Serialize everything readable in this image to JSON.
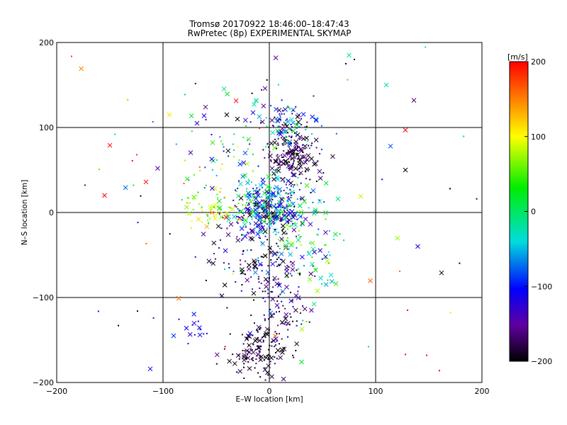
{
  "chart_data": {
    "type": "scatter",
    "title": "Tromsø 20170922 18:46:00–18:47:43",
    "subtitle": "RwPretec (8p) EXPERIMENTAL SKYMAP",
    "xlabel": "E–W location [km]",
    "ylabel": "N–S location [km]",
    "xlim": [
      -200,
      200
    ],
    "ylim": [
      -200,
      200
    ],
    "x_ticks": [
      "−200",
      "−100",
      "0",
      "100",
      "200"
    ],
    "y_ticks": [
      "−200",
      "−100",
      "0",
      "100",
      "200"
    ],
    "grid": true,
    "colorbar": {
      "label": "[m/s]",
      "range": [
        -200,
        200
      ],
      "ticks": [
        "200",
        "100",
        "0",
        "−100",
        "−200"
      ],
      "colormap": "black-purple-blue-cyan-green-yellow-red"
    },
    "marker_legend": "dots and crosses",
    "clusters": [
      {
        "x": 0,
        "y": 5,
        "sx": 18,
        "sy": 18,
        "n": 420,
        "vmean": -90,
        "vsd": 60
      },
      {
        "x": 22,
        "y": 65,
        "sx": 12,
        "sy": 14,
        "n": 160,
        "vmean": -180,
        "vsd": 20
      },
      {
        "x": 18,
        "y": 105,
        "sx": 18,
        "sy": 18,
        "n": 110,
        "vmean": -90,
        "vsd": 70
      },
      {
        "x": -12,
        "y": -162,
        "sx": 14,
        "sy": 14,
        "n": 130,
        "vmean": -190,
        "vsd": 15
      },
      {
        "x": 10,
        "y": -120,
        "sx": 14,
        "sy": 25,
        "n": 80,
        "vmean": -170,
        "vsd": 40
      },
      {
        "x": -70,
        "y": -135,
        "sx": 8,
        "sy": 8,
        "n": 14,
        "vmean": -110,
        "vsd": 10
      },
      {
        "x": -5,
        "y": -55,
        "sx": 25,
        "sy": 25,
        "n": 150,
        "vmean": -160,
        "vsd": 60
      },
      {
        "x": 40,
        "y": -40,
        "sx": 15,
        "sy": 30,
        "n": 70,
        "vmean": -10,
        "vsd": 50
      },
      {
        "x": -55,
        "y": 5,
        "sx": 14,
        "sy": 10,
        "n": 60,
        "vmean": 70,
        "vsd": 40
      },
      {
        "x": -40,
        "y": 70,
        "sx": 25,
        "sy": 40,
        "n": 60,
        "vmean": -40,
        "vsd": 60
      },
      {
        "x": 0,
        "y": 0,
        "sx": 110,
        "sy": 100,
        "n": 80,
        "vmean": 0,
        "vsd": 150
      }
    ],
    "highlighted_points": [
      {
        "x": 75,
        "y": 185,
        "v": -40,
        "m": "x"
      },
      {
        "x": 110,
        "y": 150,
        "v": -40,
        "m": "x"
      },
      {
        "x": 136,
        "y": 132,
        "v": -160,
        "m": "x"
      },
      {
        "x": 128,
        "y": 97,
        "v": 200,
        "m": "x"
      },
      {
        "x": 114,
        "y": 78,
        "v": -80,
        "m": "x"
      },
      {
        "x": 128,
        "y": 50,
        "v": -200,
        "m": "x"
      },
      {
        "x": 86,
        "y": 19,
        "v": 70,
        "m": "x"
      },
      {
        "x": 162,
        "y": -71,
        "v": -200,
        "m": "x"
      },
      {
        "x": -150,
        "y": 79,
        "v": 200,
        "m": "x"
      },
      {
        "x": -155,
        "y": 20,
        "v": 200,
        "m": "x"
      },
      {
        "x": -116,
        "y": 36,
        "v": 200,
        "m": "x"
      },
      {
        "x": -105,
        "y": 52,
        "v": -140,
        "m": "x"
      },
      {
        "x": -94,
        "y": 115,
        "v": 110,
        "m": "x"
      },
      {
        "x": -40,
        "y": 115,
        "v": -200,
        "m": "x"
      },
      {
        "x": -30,
        "y": 110,
        "v": -200,
        "m": "x"
      },
      {
        "x": -4,
        "y": 146,
        "v": -160,
        "m": "x"
      },
      {
        "x": -60,
        "y": 124,
        "v": -160,
        "m": "x"
      },
      {
        "x": -68,
        "y": 105,
        "v": -120,
        "m": "x"
      },
      {
        "x": 80,
        "y": 180,
        "v": -200,
        "m": "."
      },
      {
        "x": 72,
        "y": 175,
        "v": -200,
        "m": "."
      },
      {
        "x": 130,
        "y": -115,
        "v": 200,
        "m": "."
      },
      {
        "x": 128,
        "y": -167,
        "v": 200,
        "m": "."
      },
      {
        "x": 148,
        "y": -168,
        "v": 200,
        "m": "."
      },
      {
        "x": 160,
        "y": -186,
        "v": 200,
        "m": "."
      },
      {
        "x": 170,
        "y": 28,
        "v": -200,
        "m": "."
      },
      {
        "x": -124,
        "y": -116,
        "v": -200,
        "m": "."
      },
      {
        "x": -142,
        "y": -133,
        "v": -200,
        "m": "."
      },
      {
        "x": -112,
        "y": -184,
        "v": -100,
        "m": "x"
      },
      {
        "x": -90,
        "y": -145,
        "v": -90,
        "m": "x"
      }
    ]
  }
}
